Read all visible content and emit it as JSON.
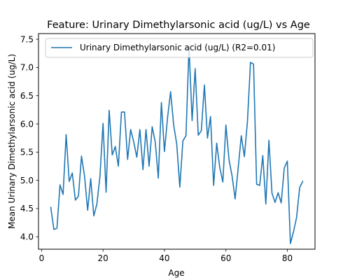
{
  "chart_data": {
    "type": "line",
    "title": "Feature: Urinary Dimethylarsonic acid (ug/L) vs Age",
    "xlabel": "Age",
    "ylabel": "Mean Urinary Dimethylarsonic acid (ug/L)",
    "xlim": [
      -1,
      89
    ],
    "ylim": [
      3.78,
      7.6
    ],
    "xticks": [
      0,
      20,
      40,
      60,
      80
    ],
    "yticks": [
      4.0,
      4.5,
      5.0,
      5.5,
      6.0,
      6.5,
      7.0,
      7.5
    ],
    "grid": false,
    "legend_position": "top-left",
    "series": [
      {
        "name": "Urinary Dimethylarsonic acid (ug/L) (R2=0.01)",
        "color": "#1f77b4",
        "x": [
          3,
          4,
          5,
          6,
          7,
          8,
          9,
          10,
          11,
          12,
          13,
          14,
          15,
          16,
          17,
          18,
          19,
          20,
          21,
          22,
          23,
          24,
          25,
          26,
          27,
          28,
          29,
          30,
          31,
          32,
          33,
          34,
          35,
          36,
          37,
          38,
          39,
          40,
          41,
          42,
          43,
          44,
          45,
          46,
          47,
          48,
          49,
          50,
          51,
          52,
          53,
          54,
          55,
          56,
          57,
          58,
          59,
          60,
          61,
          62,
          63,
          64,
          65,
          66,
          67,
          68,
          69,
          70,
          71,
          72,
          73,
          74,
          75,
          76,
          77,
          78,
          79,
          80,
          81,
          82,
          83,
          84,
          85
        ],
        "y": [
          4.52,
          4.13,
          4.15,
          4.92,
          4.75,
          5.81,
          4.98,
          5.13,
          4.65,
          4.72,
          5.43,
          5.07,
          4.47,
          5.03,
          4.37,
          4.58,
          5.07,
          6.01,
          4.79,
          6.24,
          5.45,
          5.6,
          5.25,
          6.21,
          6.21,
          5.37,
          5.9,
          5.68,
          5.41,
          5.9,
          5.19,
          5.9,
          5.25,
          5.95,
          5.68,
          5.04,
          6.38,
          5.51,
          6.11,
          6.57,
          5.98,
          5.64,
          4.88,
          5.7,
          5.79,
          7.37,
          6.06,
          6.98,
          5.8,
          5.88,
          6.69,
          5.75,
          6.13,
          4.91,
          5.66,
          5.23,
          4.97,
          5.98,
          5.37,
          5.08,
          4.67,
          5.22,
          5.79,
          5.42,
          6.03,
          7.09,
          7.06,
          4.93,
          4.91,
          5.44,
          4.58,
          5.71,
          4.77,
          4.61,
          4.78,
          4.6,
          5.22,
          5.34,
          3.88,
          4.09,
          4.34,
          4.87,
          4.98
        ]
      }
    ]
  }
}
